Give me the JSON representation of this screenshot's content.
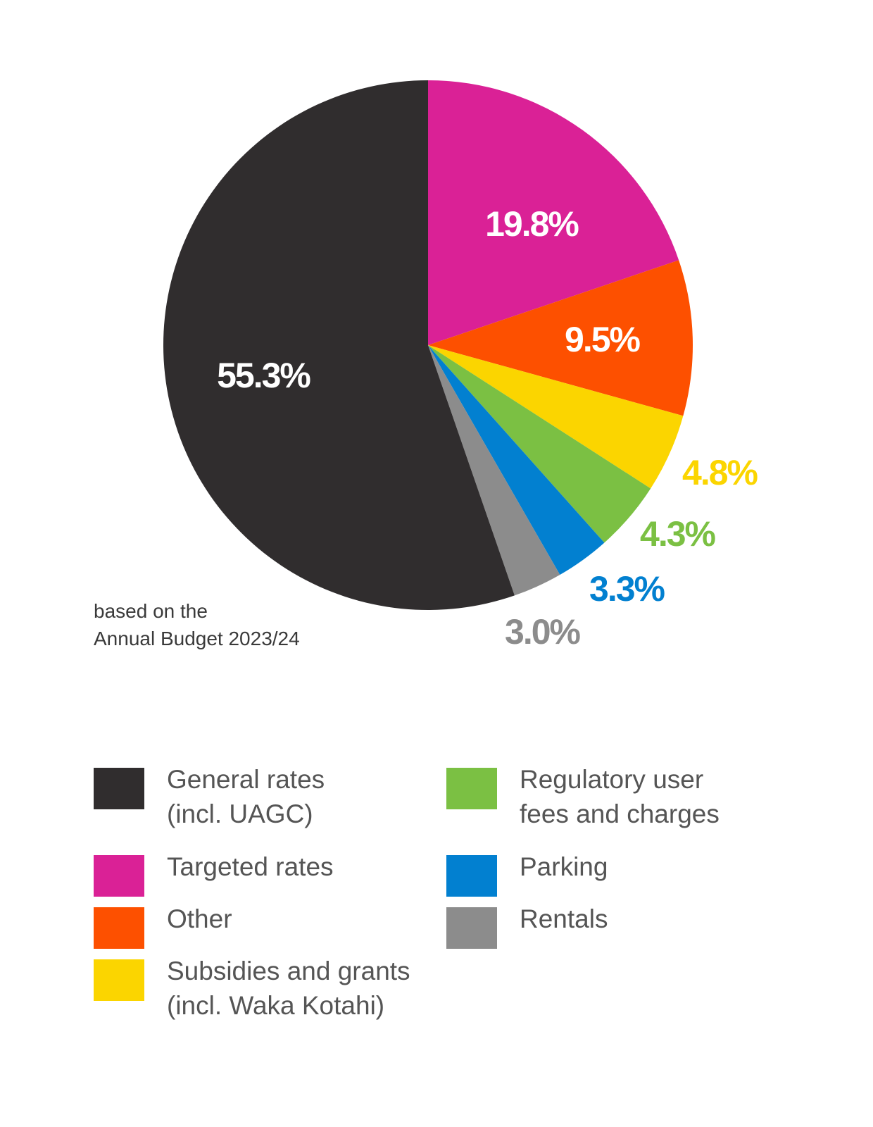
{
  "chart_data": {
    "type": "pie",
    "slices": [
      {
        "label": "Targeted rates",
        "value": 19.8,
        "value_label": "19.8%",
        "color": "#da2196"
      },
      {
        "label": "Other",
        "value": 9.5,
        "value_label": "9.5%",
        "color": "#fd5000"
      },
      {
        "label": "Subsidies and grants (incl. Waka Kotahi)",
        "value": 4.8,
        "value_label": "4.8%",
        "color": "#fbd500"
      },
      {
        "label": "Regulatory user fees and charges",
        "value": 4.3,
        "value_label": "4.3%",
        "color": "#7bc043"
      },
      {
        "label": "Parking",
        "value": 3.3,
        "value_label": "3.3%",
        "color": "#0280d0"
      },
      {
        "label": "Rentals",
        "value": 3.0,
        "value_label": "3.0%",
        "color": "#8c8c8c"
      },
      {
        "label": "General rates (incl. UAGC)",
        "value": 55.3,
        "value_label": "55.3%",
        "color": "#302d2e"
      }
    ],
    "start_angle": "12 o'clock",
    "direction": "clockwise",
    "legend_position": "bottom"
  },
  "note": {
    "line1": "based on the",
    "line2": "Annual Budget 2023/24"
  },
  "legend": [
    {
      "lines": [
        "General rates",
        "(incl. UAGC)"
      ],
      "color": "#302d2e"
    },
    {
      "lines": [
        "Targeted rates"
      ],
      "color": "#da2196"
    },
    {
      "lines": [
        "Other"
      ],
      "color": "#fd5000"
    },
    {
      "lines": [
        "Subsidies and grants",
        "(incl. Waka Kotahi)"
      ],
      "color": "#fbd500"
    },
    {
      "lines": [
        "Regulatory user",
        "fees and charges"
      ],
      "color": "#7bc043"
    },
    {
      "lines": [
        "Parking"
      ],
      "color": "#0280d0"
    },
    {
      "lines": [
        "Rentals"
      ],
      "color": "#8c8c8c"
    }
  ]
}
